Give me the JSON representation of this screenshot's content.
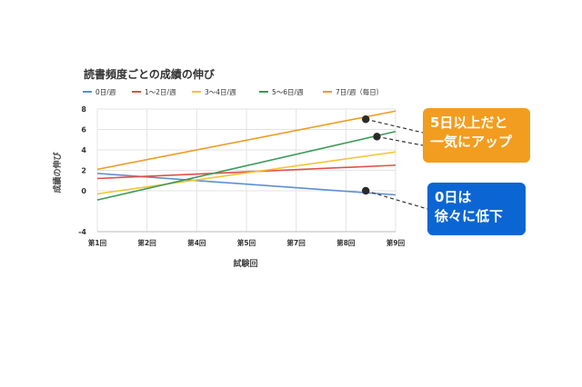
{
  "chart_data": {
    "type": "line",
    "title": "読書頻度ごとの成績の伸び",
    "xlabel": "試験回",
    "ylabel": "成績の伸び",
    "categories": [
      "第1回",
      "第2回",
      "第4回",
      "第5回",
      "第7回",
      "第8回",
      "第9回"
    ],
    "x_range": [
      1,
      9
    ],
    "ylim": [
      -4,
      8
    ],
    "y_ticks": [
      -4,
      0,
      2,
      4,
      6,
      8
    ],
    "grid": true,
    "legend_position": "top",
    "series": [
      {
        "name": "0日/週",
        "color": "#5b8fd6",
        "x": [
          1,
          9
        ],
        "y": [
          1.7,
          -0.4
        ]
      },
      {
        "name": "1〜2日/週",
        "color": "#e0504a",
        "x": [
          1,
          9
        ],
        "y": [
          1.2,
          2.5
        ]
      },
      {
        "name": "3〜4日/週",
        "color": "#f2c438",
        "x": [
          1,
          9
        ],
        "y": [
          -0.3,
          3.8
        ]
      },
      {
        "name": "5〜6日/週",
        "color": "#3a9a55",
        "x": [
          1,
          9
        ],
        "y": [
          -0.9,
          5.8
        ]
      },
      {
        "name": "7日/週（毎日）",
        "color": "#ef9b22",
        "x": [
          1,
          9
        ],
        "y": [
          2.1,
          7.8
        ]
      }
    ],
    "annotations": [
      {
        "lines": [
          "5日以上だと",
          "一気にアップ"
        ],
        "color": "#f29d1f",
        "points": [
          {
            "x": 8.2,
            "y": 7.0
          },
          {
            "x": 8.5,
            "y": 5.3
          }
        ]
      },
      {
        "lines": [
          "0日は",
          "徐々に低下"
        ],
        "color": "#0b66d3",
        "points": [
          {
            "x": 8.2,
            "y": 0.0
          }
        ]
      }
    ]
  }
}
